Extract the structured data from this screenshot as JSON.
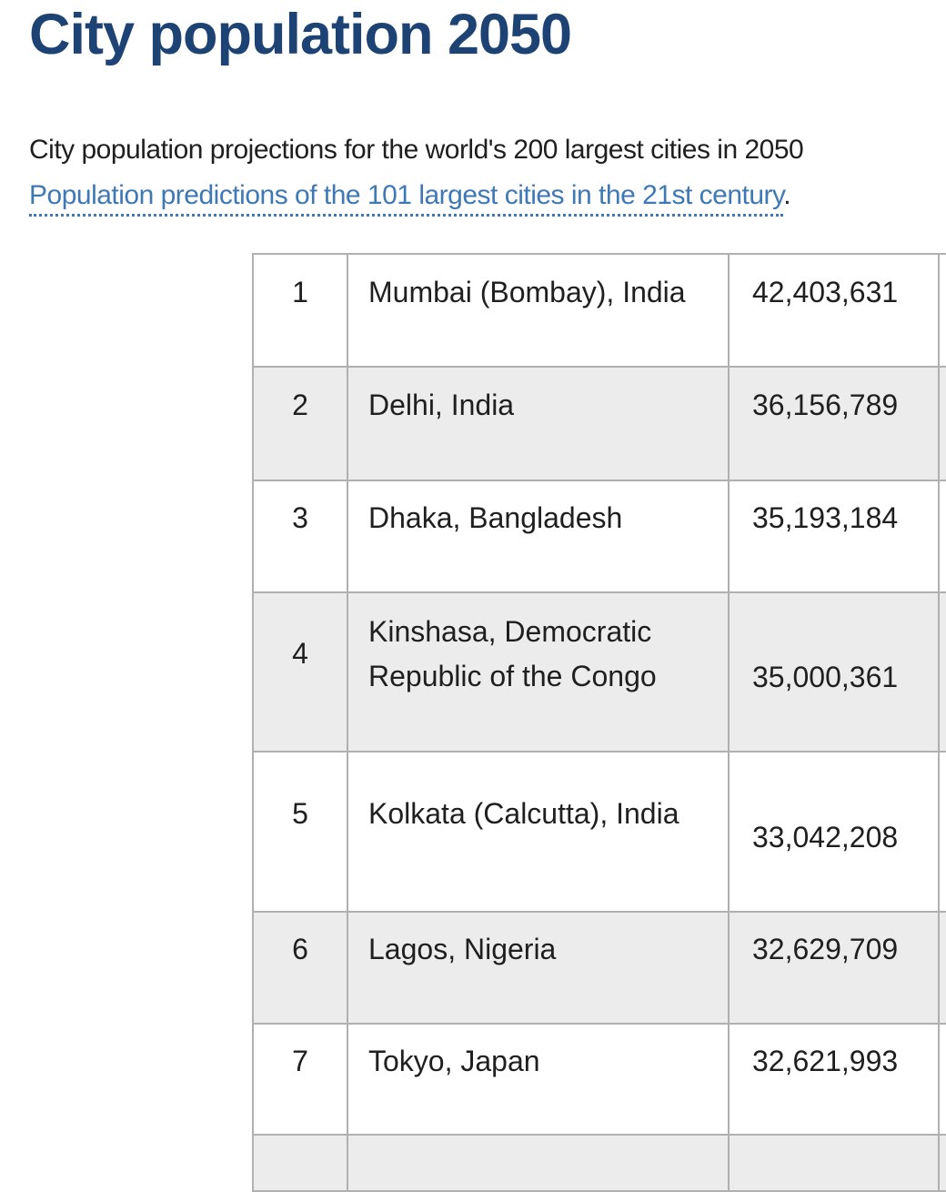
{
  "header": {
    "title": "City population 2050",
    "title_color": "#1d4375"
  },
  "intro": {
    "text": "City population projections for the world's 200 largest cities in 2050",
    "link_text": "Population predictions of the 101 largest cities in the 21st century",
    "link_suffix": ".",
    "link_color": "#3e79b6"
  },
  "table": {
    "columns": [
      "rank",
      "city",
      "population_2050"
    ],
    "stripe_color": "#ececec",
    "border_color": "#b0b0b0",
    "rows": [
      {
        "rank": "1",
        "city": "Mumbai (Bombay), India",
        "population": "42,403,631"
      },
      {
        "rank": "2",
        "city": "Delhi, India",
        "population": "36,156,789"
      },
      {
        "rank": "3",
        "city": "Dhaka, Bangladesh",
        "population": "35,193,184"
      },
      {
        "rank": "4",
        "city": "Kinshasa, Democratic Republic of the Congo",
        "population": "35,000,361"
      },
      {
        "rank": "5",
        "city": "Kolkata (Calcutta), India",
        "population": "33,042,208"
      },
      {
        "rank": "6",
        "city": "Lagos, Nigeria",
        "population": "32,629,709"
      },
      {
        "rank": "7",
        "city": "Tokyo, Japan",
        "population": "32,621,993"
      }
    ]
  }
}
